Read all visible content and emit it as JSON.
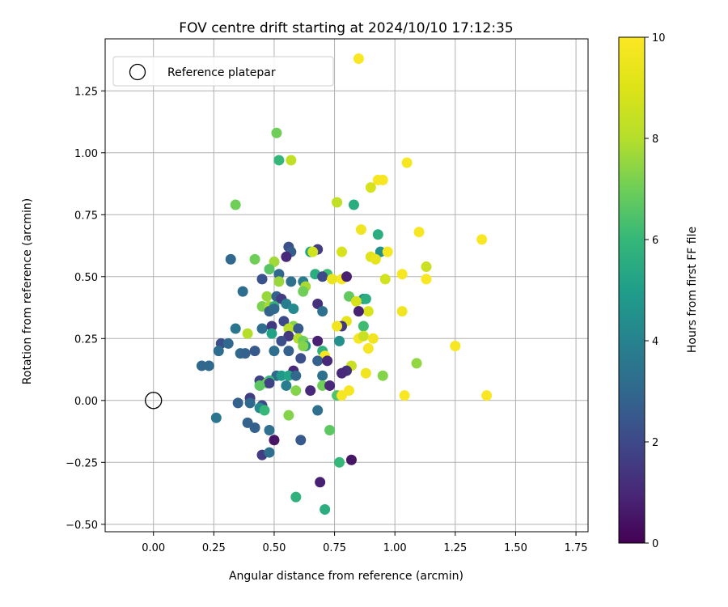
{
  "chart_data": {
    "type": "scatter",
    "title": "FOV centre drift starting at 2024/10/10 17:12:35",
    "xlabel": "Angular distance from reference (arcmin)",
    "ylabel": "Rotation from reference (arcmin)",
    "xlim": [
      -0.2,
      1.8
    ],
    "ylim": [
      -0.53,
      1.46
    ],
    "xticks": [
      "0.00",
      "0.25",
      "0.50",
      "0.75",
      "1.00",
      "1.25",
      "1.50",
      "1.75"
    ],
    "yticks": [
      "−0.50",
      "−0.25",
      "0.00",
      "0.25",
      "0.50",
      "0.75",
      "1.00",
      "1.25"
    ],
    "xtick_values": [
      0,
      0.25,
      0.5,
      0.75,
      1.0,
      1.25,
      1.5,
      1.75
    ],
    "ytick_values": [
      -0.5,
      -0.25,
      0,
      0.25,
      0.5,
      0.75,
      1.0,
      1.25
    ],
    "grid": true,
    "legend": {
      "placement": "top-left",
      "entries": [
        "Reference platepar"
      ]
    },
    "reference_point": {
      "x": 0.0,
      "y": 0.0
    },
    "colorbar": {
      "label": "Hours from first FF file",
      "min": 0,
      "max": 10,
      "ticks": [
        "0",
        "2",
        "4",
        "6",
        "8",
        "10"
      ],
      "tick_values": [
        0,
        2,
        4,
        6,
        8,
        10
      ],
      "colormap": "viridis"
    },
    "points": [
      {
        "x": 0.85,
        "y": 1.38,
        "c": 9.9
      },
      {
        "x": 0.51,
        "y": 1.08,
        "c": 7.0
      },
      {
        "x": 0.52,
        "y": 0.97,
        "c": 6.0
      },
      {
        "x": 0.57,
        "y": 0.97,
        "c": 8.3
      },
      {
        "x": 1.05,
        "y": 0.96,
        "c": 9.8
      },
      {
        "x": 0.93,
        "y": 0.89,
        "c": 9.8
      },
      {
        "x": 0.95,
        "y": 0.89,
        "c": 9.8
      },
      {
        "x": 0.9,
        "y": 0.86,
        "c": 8.8
      },
      {
        "x": 0.76,
        "y": 0.8,
        "c": 8.3
      },
      {
        "x": 0.34,
        "y": 0.79,
        "c": 7.0
      },
      {
        "x": 0.83,
        "y": 0.79,
        "c": 5.6
      },
      {
        "x": 0.86,
        "y": 0.69,
        "c": 9.6
      },
      {
        "x": 1.1,
        "y": 0.68,
        "c": 9.8
      },
      {
        "x": 0.93,
        "y": 0.67,
        "c": 5.6
      },
      {
        "x": 1.36,
        "y": 0.65,
        "c": 9.9
      },
      {
        "x": 0.68,
        "y": 0.61,
        "c": 1.6
      },
      {
        "x": 0.78,
        "y": 0.6,
        "c": 8.8
      },
      {
        "x": 0.94,
        "y": 0.6,
        "c": 4.5
      },
      {
        "x": 0.97,
        "y": 0.6,
        "c": 9.8
      },
      {
        "x": 0.56,
        "y": 0.62,
        "c": 2.2
      },
      {
        "x": 0.57,
        "y": 0.6,
        "c": 2.6
      },
      {
        "x": 0.55,
        "y": 0.58,
        "c": 1.0
      },
      {
        "x": 0.65,
        "y": 0.6,
        "c": 5.2
      },
      {
        "x": 0.66,
        "y": 0.6,
        "c": 8.7
      },
      {
        "x": 0.9,
        "y": 0.58,
        "c": 9.1
      },
      {
        "x": 0.92,
        "y": 0.57,
        "c": 9.3
      },
      {
        "x": 0.32,
        "y": 0.57,
        "c": 3.0
      },
      {
        "x": 0.42,
        "y": 0.57,
        "c": 7.0
      },
      {
        "x": 0.5,
        "y": 0.56,
        "c": 7.7
      },
      {
        "x": 1.13,
        "y": 0.54,
        "c": 8.5
      },
      {
        "x": 0.48,
        "y": 0.53,
        "c": 6.6
      },
      {
        "x": 0.72,
        "y": 0.51,
        "c": 6.2
      },
      {
        "x": 0.52,
        "y": 0.51,
        "c": 3.0
      },
      {
        "x": 0.67,
        "y": 0.51,
        "c": 5.6
      },
      {
        "x": 1.03,
        "y": 0.51,
        "c": 9.8
      },
      {
        "x": 0.7,
        "y": 0.5,
        "c": 2.0
      },
      {
        "x": 0.74,
        "y": 0.49,
        "c": 9.4
      },
      {
        "x": 0.78,
        "y": 0.49,
        "c": 9.8
      },
      {
        "x": 0.8,
        "y": 0.5,
        "c": 0.8
      },
      {
        "x": 1.13,
        "y": 0.49,
        "c": 9.9
      },
      {
        "x": 0.96,
        "y": 0.49,
        "c": 8.7
      },
      {
        "x": 0.45,
        "y": 0.49,
        "c": 2.3
      },
      {
        "x": 0.52,
        "y": 0.48,
        "c": 7.6
      },
      {
        "x": 0.57,
        "y": 0.48,
        "c": 3.3
      },
      {
        "x": 0.62,
        "y": 0.48,
        "c": 3.8
      },
      {
        "x": 0.63,
        "y": 0.46,
        "c": 7.8
      },
      {
        "x": 0.62,
        "y": 0.44,
        "c": 7.0
      },
      {
        "x": 0.37,
        "y": 0.44,
        "c": 3.2
      },
      {
        "x": 0.81,
        "y": 0.42,
        "c": 6.8
      },
      {
        "x": 0.47,
        "y": 0.42,
        "c": 7.6
      },
      {
        "x": 0.51,
        "y": 0.42,
        "c": 2.8
      },
      {
        "x": 0.53,
        "y": 0.41,
        "c": 1.6
      },
      {
        "x": 0.87,
        "y": 0.41,
        "c": 4.3
      },
      {
        "x": 0.88,
        "y": 0.41,
        "c": 5.6
      },
      {
        "x": 0.84,
        "y": 0.4,
        "c": 8.8
      },
      {
        "x": 0.68,
        "y": 0.39,
        "c": 1.2
      },
      {
        "x": 0.45,
        "y": 0.38,
        "c": 7.2
      },
      {
        "x": 0.48,
        "y": 0.38,
        "c": 7.8
      },
      {
        "x": 0.5,
        "y": 0.38,
        "c": 5.8
      },
      {
        "x": 0.55,
        "y": 0.39,
        "c": 3.8
      },
      {
        "x": 0.58,
        "y": 0.37,
        "c": 4.3
      },
      {
        "x": 0.48,
        "y": 0.36,
        "c": 2.8
      },
      {
        "x": 0.5,
        "y": 0.37,
        "c": 3.0
      },
      {
        "x": 0.7,
        "y": 0.36,
        "c": 3.3
      },
      {
        "x": 0.89,
        "y": 0.36,
        "c": 8.9
      },
      {
        "x": 0.85,
        "y": 0.36,
        "c": 0.8
      },
      {
        "x": 1.03,
        "y": 0.36,
        "c": 9.6
      },
      {
        "x": 0.54,
        "y": 0.32,
        "c": 2.0
      },
      {
        "x": 0.8,
        "y": 0.32,
        "c": 9.3
      },
      {
        "x": 0.78,
        "y": 0.3,
        "c": 1.5
      },
      {
        "x": 0.76,
        "y": 0.3,
        "c": 9.6
      },
      {
        "x": 0.87,
        "y": 0.3,
        "c": 6.2
      },
      {
        "x": 0.34,
        "y": 0.29,
        "c": 3.5
      },
      {
        "x": 0.45,
        "y": 0.29,
        "c": 3.2
      },
      {
        "x": 0.49,
        "y": 0.3,
        "c": 1.5
      },
      {
        "x": 0.58,
        "y": 0.3,
        "c": 7.3
      },
      {
        "x": 0.56,
        "y": 0.29,
        "c": 8.1
      },
      {
        "x": 0.6,
        "y": 0.29,
        "c": 2.5
      },
      {
        "x": 0.39,
        "y": 0.27,
        "c": 8.0
      },
      {
        "x": 0.49,
        "y": 0.27,
        "c": 5.2
      },
      {
        "x": 0.56,
        "y": 0.26,
        "c": 1.5
      },
      {
        "x": 0.6,
        "y": 0.25,
        "c": 8.0
      },
      {
        "x": 0.62,
        "y": 0.24,
        "c": 7.0
      },
      {
        "x": 0.53,
        "y": 0.24,
        "c": 2.2
      },
      {
        "x": 0.68,
        "y": 0.24,
        "c": 0.8
      },
      {
        "x": 0.85,
        "y": 0.25,
        "c": 9.8
      },
      {
        "x": 0.87,
        "y": 0.26,
        "c": 8.5
      },
      {
        "x": 0.91,
        "y": 0.25,
        "c": 9.6
      },
      {
        "x": 0.77,
        "y": 0.24,
        "c": 4.5
      },
      {
        "x": 0.28,
        "y": 0.23,
        "c": 2.2
      },
      {
        "x": 0.31,
        "y": 0.23,
        "c": 3.0
      },
      {
        "x": 0.63,
        "y": 0.22,
        "c": 4.8
      },
      {
        "x": 0.62,
        "y": 0.22,
        "c": 7.3
      },
      {
        "x": 0.89,
        "y": 0.21,
        "c": 9.8
      },
      {
        "x": 0.27,
        "y": 0.2,
        "c": 3.2
      },
      {
        "x": 0.36,
        "y": 0.19,
        "c": 3.0
      },
      {
        "x": 0.38,
        "y": 0.19,
        "c": 2.8
      },
      {
        "x": 0.42,
        "y": 0.2,
        "c": 2.5
      },
      {
        "x": 0.5,
        "y": 0.2,
        "c": 3.2
      },
      {
        "x": 0.56,
        "y": 0.2,
        "c": 2.8
      },
      {
        "x": 0.7,
        "y": 0.2,
        "c": 5.8
      },
      {
        "x": 0.71,
        "y": 0.18,
        "c": 9.8
      },
      {
        "x": 1.25,
        "y": 0.22,
        "c": 9.8
      },
      {
        "x": 0.61,
        "y": 0.17,
        "c": 2.2
      },
      {
        "x": 0.68,
        "y": 0.16,
        "c": 2.8
      },
      {
        "x": 0.72,
        "y": 0.16,
        "c": 1.0
      },
      {
        "x": 0.2,
        "y": 0.14,
        "c": 3.0
      },
      {
        "x": 0.23,
        "y": 0.14,
        "c": 3.0
      },
      {
        "x": 0.82,
        "y": 0.14,
        "c": 8.5
      },
      {
        "x": 1.09,
        "y": 0.15,
        "c": 7.5
      },
      {
        "x": 0.58,
        "y": 0.12,
        "c": 1.0
      },
      {
        "x": 0.8,
        "y": 0.12,
        "c": 1.2
      },
      {
        "x": 0.78,
        "y": 0.11,
        "c": 1.0
      },
      {
        "x": 0.88,
        "y": 0.11,
        "c": 9.6
      },
      {
        "x": 0.95,
        "y": 0.1,
        "c": 7.3
      },
      {
        "x": 0.51,
        "y": 0.1,
        "c": 3.0
      },
      {
        "x": 0.53,
        "y": 0.1,
        "c": 4.8
      },
      {
        "x": 0.56,
        "y": 0.1,
        "c": 5.2
      },
      {
        "x": 0.59,
        "y": 0.1,
        "c": 3.0
      },
      {
        "x": 0.7,
        "y": 0.1,
        "c": 3.3
      },
      {
        "x": 0.44,
        "y": 0.08,
        "c": 1.8
      },
      {
        "x": 0.48,
        "y": 0.08,
        "c": 6.0
      },
      {
        "x": 0.47,
        "y": 0.07,
        "c": 7.0
      },
      {
        "x": 0.48,
        "y": 0.07,
        "c": 1.8
      },
      {
        "x": 0.44,
        "y": 0.06,
        "c": 6.7
      },
      {
        "x": 0.55,
        "y": 0.06,
        "c": 3.8
      },
      {
        "x": 0.7,
        "y": 0.06,
        "c": 7.0
      },
      {
        "x": 0.73,
        "y": 0.06,
        "c": 1.0
      },
      {
        "x": 0.59,
        "y": 0.04,
        "c": 7.3
      },
      {
        "x": 0.65,
        "y": 0.04,
        "c": 1.0
      },
      {
        "x": 0.81,
        "y": 0.04,
        "c": 9.8
      },
      {
        "x": 1.04,
        "y": 0.02,
        "c": 9.9
      },
      {
        "x": 1.38,
        "y": 0.02,
        "c": 9.9
      },
      {
        "x": 0.76,
        "y": 0.02,
        "c": 6.5
      },
      {
        "x": 0.78,
        "y": 0.02,
        "c": 9.8
      },
      {
        "x": 0.4,
        "y": 0.01,
        "c": 1.6
      },
      {
        "x": 0.35,
        "y": -0.01,
        "c": 2.8
      },
      {
        "x": 0.4,
        "y": -0.01,
        "c": 3.0
      },
      {
        "x": 0.45,
        "y": -0.02,
        "c": 2.0
      },
      {
        "x": 0.44,
        "y": -0.03,
        "c": 4.3
      },
      {
        "x": 0.46,
        "y": -0.04,
        "c": 6.0
      },
      {
        "x": 0.68,
        "y": -0.04,
        "c": 3.3
      },
      {
        "x": 0.56,
        "y": -0.06,
        "c": 7.3
      },
      {
        "x": 0.26,
        "y": -0.07,
        "c": 3.5
      },
      {
        "x": 0.39,
        "y": -0.09,
        "c": 2.8
      },
      {
        "x": 0.42,
        "y": -0.11,
        "c": 2.8
      },
      {
        "x": 0.48,
        "y": -0.12,
        "c": 3.3
      },
      {
        "x": 0.73,
        "y": -0.12,
        "c": 6.7
      },
      {
        "x": 0.5,
        "y": -0.16,
        "c": 0.5
      },
      {
        "x": 0.61,
        "y": -0.16,
        "c": 2.5
      },
      {
        "x": 0.45,
        "y": -0.22,
        "c": 1.6
      },
      {
        "x": 0.48,
        "y": -0.21,
        "c": 3.3
      },
      {
        "x": 0.82,
        "y": -0.24,
        "c": 0.5
      },
      {
        "x": 0.77,
        "y": -0.25,
        "c": 6.0
      },
      {
        "x": 0.69,
        "y": -0.33,
        "c": 0.8
      },
      {
        "x": 0.59,
        "y": -0.39,
        "c": 5.8
      },
      {
        "x": 0.71,
        "y": -0.44,
        "c": 5.6
      }
    ]
  }
}
